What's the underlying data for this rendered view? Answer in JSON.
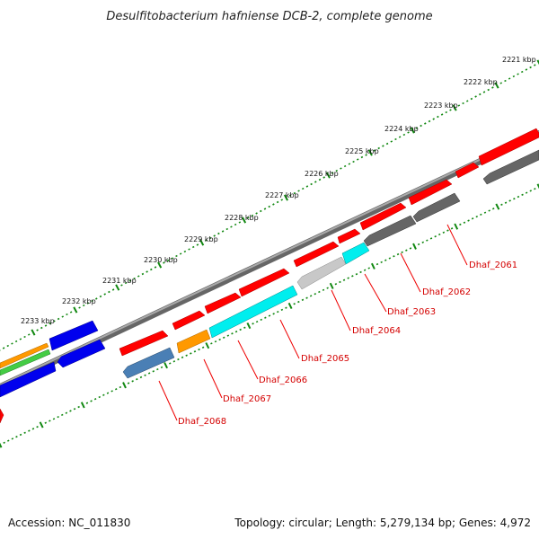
{
  "title": "Desulfitobacterium hafniense DCB-2, complete genome",
  "footer": {
    "accession": "Accession: NC_011830",
    "topology": "Topology: circular; Length: 5,279,134 bp; Genes: 4,972"
  },
  "ticks": [
    "2221 kbp",
    "2222 kbp",
    "2223 kbp",
    "2224 kbp",
    "2225 kbp",
    "2226 kbp",
    "2227 kbp",
    "2228 kbp",
    "2229 kbp",
    "2230 kbp",
    "2231 kbp",
    "2232 kbp",
    "2233 kbp"
  ],
  "gene_labels": [
    "Dhaf_2061",
    "Dhaf_2062",
    "Dhaf_2063",
    "Dhaf_2064",
    "Dhaf_2065",
    "Dhaf_2066",
    "Dhaf_2067",
    "Dhaf_2068"
  ],
  "colors": {
    "red": "#ff0000",
    "blue": "#0000ee",
    "orange": "#ff9900",
    "green": "#44cc44",
    "cyan": "#00eeee",
    "steelblue": "#4a7fb5",
    "grey": "#666666",
    "silver": "#c8c8c8",
    "backbone": "#888888",
    "tick_green": "#118811",
    "label_red": "#d40000"
  }
}
